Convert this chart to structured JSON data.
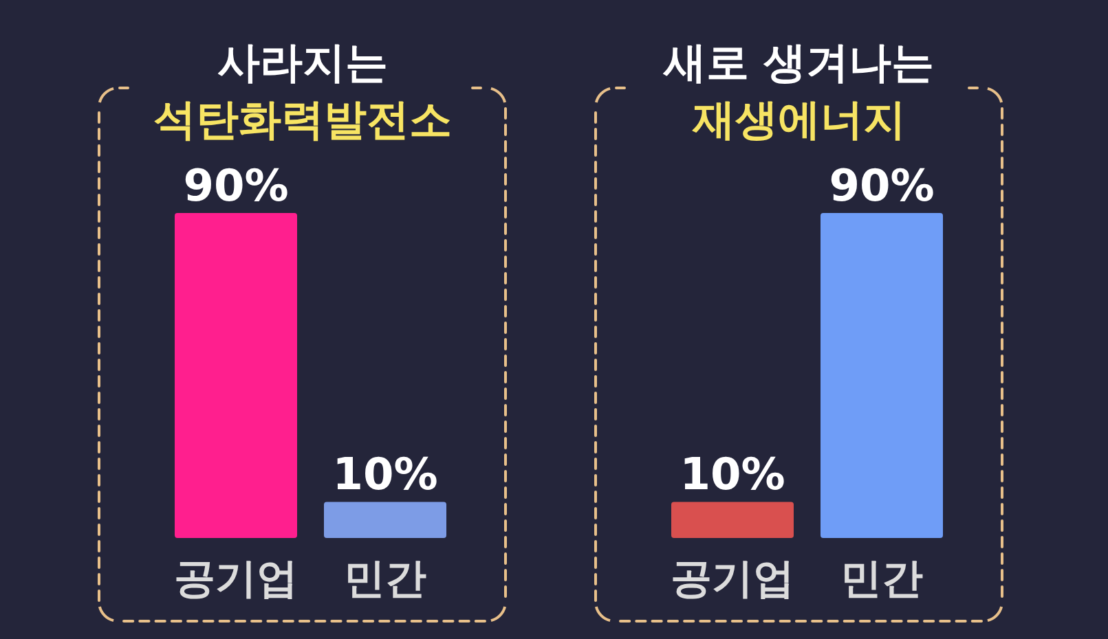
{
  "chart_data": [
    {
      "type": "bar",
      "title": "사라지는",
      "subtitle": "석탄화력발전소",
      "categories": [
        "공기업",
        "민간"
      ],
      "values": [
        90,
        10
      ],
      "colors": [
        "#ff1f8e",
        "#7d9ce6"
      ],
      "value_labels": [
        "90%",
        "10%"
      ]
    },
    {
      "type": "bar",
      "title": "새로 생겨나는",
      "subtitle": "재생에너지",
      "categories": [
        "공기업",
        "민간"
      ],
      "values": [
        10,
        90
      ],
      "colors": [
        "#d9504f",
        "#6f9df7"
      ],
      "value_labels": [
        "10%",
        "90%"
      ]
    }
  ]
}
